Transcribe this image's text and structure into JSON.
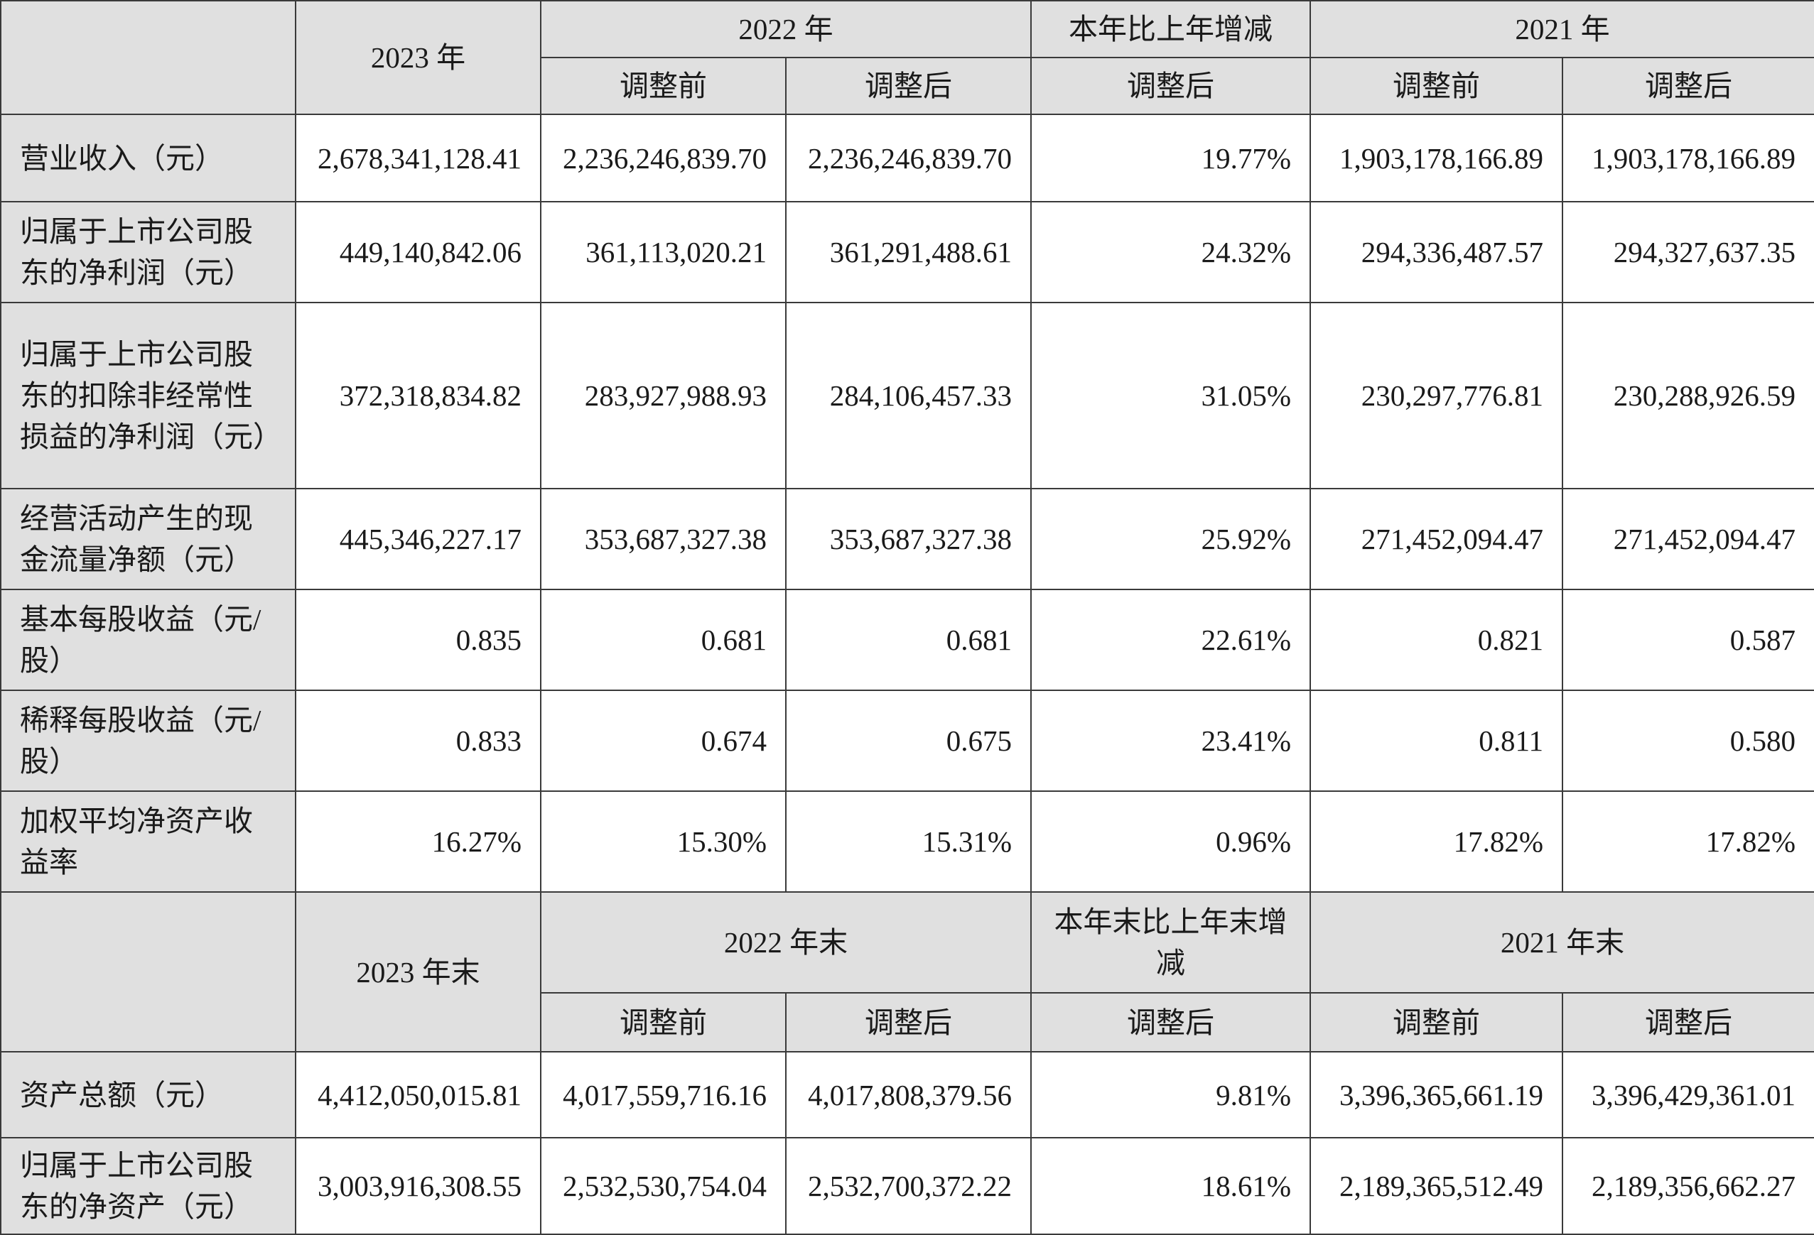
{
  "header1": {
    "col_2023": "2023 年",
    "col_2022": "2022 年",
    "col_change": "本年比上年增减",
    "col_2021": "2021 年",
    "before": "调整前",
    "after": "调整后",
    "change_after": "调整后"
  },
  "rows1": [
    {
      "label": "营业收入（元）",
      "v2023": "2,678,341,128.41",
      "v2022_before": "2,236,246,839.70",
      "v2022_after": "2,236,246,839.70",
      "change": "19.77%",
      "v2021_before": "1,903,178,166.89",
      "v2021_after": "1,903,178,166.89"
    },
    {
      "label": "归属于上市公司股东的净利润（元）",
      "v2023": "449,140,842.06",
      "v2022_before": "361,113,020.21",
      "v2022_after": "361,291,488.61",
      "change": "24.32%",
      "v2021_before": "294,336,487.57",
      "v2021_after": "294,327,637.35"
    },
    {
      "label": "归属于上市公司股东的扣除非经常性损益的净利润（元）",
      "v2023": "372,318,834.82",
      "v2022_before": "283,927,988.93",
      "v2022_after": "284,106,457.33",
      "change": "31.05%",
      "v2021_before": "230,297,776.81",
      "v2021_after": "230,288,926.59"
    },
    {
      "label": "经营活动产生的现金流量净额（元）",
      "v2023": "445,346,227.17",
      "v2022_before": "353,687,327.38",
      "v2022_after": "353,687,327.38",
      "change": "25.92%",
      "v2021_before": "271,452,094.47",
      "v2021_after": "271,452,094.47"
    },
    {
      "label": "基本每股收益（元/股）",
      "v2023": "0.835",
      "v2022_before": "0.681",
      "v2022_after": "0.681",
      "change": "22.61%",
      "v2021_before": "0.821",
      "v2021_after": "0.587"
    },
    {
      "label": "稀释每股收益（元/股）",
      "v2023": "0.833",
      "v2022_before": "0.674",
      "v2022_after": "0.675",
      "change": "23.41%",
      "v2021_before": "0.811",
      "v2021_after": "0.580"
    },
    {
      "label": "加权平均净资产收益率",
      "v2023": "16.27%",
      "v2022_before": "15.30%",
      "v2022_after": "15.31%",
      "change": "0.96%",
      "v2021_before": "17.82%",
      "v2021_after": "17.82%"
    }
  ],
  "header2": {
    "col_2023": "2023 年末",
    "col_2022": "2022 年末",
    "col_change": "本年末比上年末增减",
    "col_2021": "2021 年末",
    "before": "调整前",
    "after": "调整后",
    "change_after": "调整后"
  },
  "rows2": [
    {
      "label": "资产总额（元）",
      "v2023": "4,412,050,015.81",
      "v2022_before": "4,017,559,716.16",
      "v2022_after": "4,017,808,379.56",
      "change": "9.81%",
      "v2021_before": "3,396,365,661.19",
      "v2021_after": "3,396,429,361.01"
    },
    {
      "label": "归属于上市公司股东的净资产（元）",
      "v2023": "3,003,916,308.55",
      "v2022_before": "2,532,530,754.04",
      "v2022_after": "2,532,700,372.22",
      "change": "18.61%",
      "v2021_before": "2,189,365,512.49",
      "v2021_after": "2,189,356,662.27"
    }
  ]
}
